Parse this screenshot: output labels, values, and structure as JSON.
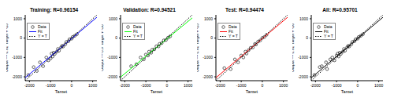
{
  "chart_data": [
    {
      "type": "scatter",
      "title": "Training: R=0.96154",
      "x_label": "Target",
      "y_label": "Output ~= 0.92*Target + -25",
      "xlim": [
        -2200,
        1200
      ],
      "ylim": [
        -2200,
        1200
      ],
      "xticks": [
        -2000,
        -1000,
        0,
        1000
      ],
      "yticks": [
        -2000,
        -1000,
        0,
        1000
      ],
      "legend": "upper left",
      "series": [
        {
          "name": "Data",
          "color": "#000000",
          "marker": "circle",
          "x": [
            -2050,
            -1800,
            -1650,
            -1500,
            -1350,
            -1200,
            -1100,
            -1000,
            -950,
            -900,
            -850,
            -800,
            -700,
            -650,
            -600,
            -500,
            -450,
            -400,
            -300,
            -250,
            -150,
            -100,
            0,
            50,
            150,
            250
          ],
          "values": [
            -1900,
            -1500,
            -1700,
            -1250,
            -1450,
            -1000,
            -1150,
            -1050,
            -800,
            -950,
            -750,
            -820,
            -700,
            -560,
            -650,
            -480,
            -400,
            -430,
            -320,
            -200,
            -160,
            -60,
            -30,
            60,
            120,
            200
          ]
        },
        {
          "name": "Fit",
          "color": "#0000ff",
          "type": "line",
          "x": [
            -2200,
            1200
          ],
          "values": [
            -2049,
            1079
          ]
        },
        {
          "name": "Y = T",
          "color": "#000000",
          "type": "line",
          "line_style": "dotted",
          "x": [
            -2200,
            1200
          ],
          "values": [
            -2200,
            1200
          ]
        }
      ]
    },
    {
      "type": "scatter",
      "title": "Validation: R=0.94521",
      "x_label": "Target",
      "y_label": "Output ~= 0.9*Target + -36",
      "xlim": [
        -2200,
        1200
      ],
      "ylim": [
        -2200,
        1200
      ],
      "xticks": [
        -2000,
        -1000,
        0,
        1000
      ],
      "yticks": [
        -2000,
        -1000,
        0,
        1000
      ],
      "legend": "upper left",
      "series": [
        {
          "name": "Data",
          "color": "#000000",
          "marker": "circle",
          "x": [
            -1700,
            -1450,
            -1250,
            -1100,
            -1000,
            -900,
            -850,
            -750,
            -700,
            -600,
            -500,
            -400,
            -350,
            -250,
            -150,
            -50,
            50,
            150
          ],
          "values": [
            -1450,
            -1350,
            -1000,
            -1100,
            -850,
            -900,
            -700,
            -760,
            -600,
            -580,
            -420,
            -430,
            -300,
            -260,
            -120,
            -100,
            20,
            90
          ]
        },
        {
          "name": "Fit",
          "color": "#00ff00",
          "type": "line",
          "x": [
            -2200,
            1200
          ],
          "values": [
            -2016,
            1044
          ]
        },
        {
          "name": "Y = T",
          "color": "#000000",
          "type": "line",
          "line_style": "dotted",
          "x": [
            -2200,
            1200
          ],
          "values": [
            -2200,
            1200
          ]
        }
      ]
    },
    {
      "type": "scatter",
      "title": "Test: R=0.94474",
      "x_label": "Target",
      "y_label": "Output ~= 0.92*Target + -25",
      "xlim": [
        -2200,
        1200
      ],
      "ylim": [
        -2200,
        1200
      ],
      "xticks": [
        -2000,
        -1000,
        0,
        1000
      ],
      "yticks": [
        -2000,
        -1000,
        0,
        1000
      ],
      "legend": "upper left",
      "series": [
        {
          "name": "Data",
          "color": "#000000",
          "marker": "circle",
          "x": [
            -1800,
            -1500,
            -1300,
            -1150,
            -1000,
            -900,
            -800,
            -750,
            -650,
            -550,
            -450,
            -350,
            -300,
            -200,
            -100,
            0,
            100,
            200
          ],
          "values": [
            -1550,
            -1600,
            -1100,
            -1250,
            -900,
            -1000,
            -700,
            -800,
            -620,
            -500,
            -480,
            -300,
            -330,
            -180,
            -120,
            10,
            60,
            170
          ]
        },
        {
          "name": "Fit",
          "color": "#ff0000",
          "type": "line",
          "x": [
            -2200,
            1200
          ],
          "values": [
            -2049,
            1079
          ]
        },
        {
          "name": "Y = T",
          "color": "#000000",
          "type": "line",
          "line_style": "dotted",
          "x": [
            -2200,
            1200
          ],
          "values": [
            -2200,
            1200
          ]
        }
      ]
    },
    {
      "type": "scatter",
      "title": "All: R=0.95701",
      "x_label": "Target",
      "y_label": "Output ~= 0.92*Target + -26",
      "xlim": [
        -2200,
        1200
      ],
      "ylim": [
        -2200,
        1200
      ],
      "xticks": [
        -2000,
        -1000,
        0,
        1000
      ],
      "yticks": [
        -2000,
        -1000,
        0,
        1000
      ],
      "legend": "upper left",
      "series": [
        {
          "name": "Data",
          "color": "#000000",
          "marker": "circle",
          "x": [
            -2050,
            -1800,
            -1700,
            -1500,
            -1450,
            -1300,
            -1200,
            -1100,
            -1000,
            -950,
            -900,
            -850,
            -800,
            -700,
            -650,
            -600,
            -500,
            -450,
            -400,
            -300,
            -250,
            -150,
            -100,
            0,
            50,
            150,
            250
          ],
          "values": [
            -1900,
            -1500,
            -1450,
            -1250,
            -1600,
            -1100,
            -1000,
            -1150,
            -900,
            -800,
            -950,
            -750,
            -820,
            -700,
            -560,
            -650,
            -480,
            -400,
            -430,
            -320,
            -200,
            -160,
            -60,
            -30,
            60,
            120,
            200
          ]
        },
        {
          "name": "Fit",
          "color": "#000000",
          "type": "line",
          "x": [
            -2200,
            1200
          ],
          "values": [
            -2050,
            1078
          ]
        },
        {
          "name": "Y = T",
          "color": "#000000",
          "type": "line",
          "line_style": "dotted",
          "x": [
            -2200,
            1200
          ],
          "values": [
            -2200,
            1200
          ]
        }
      ]
    }
  ]
}
